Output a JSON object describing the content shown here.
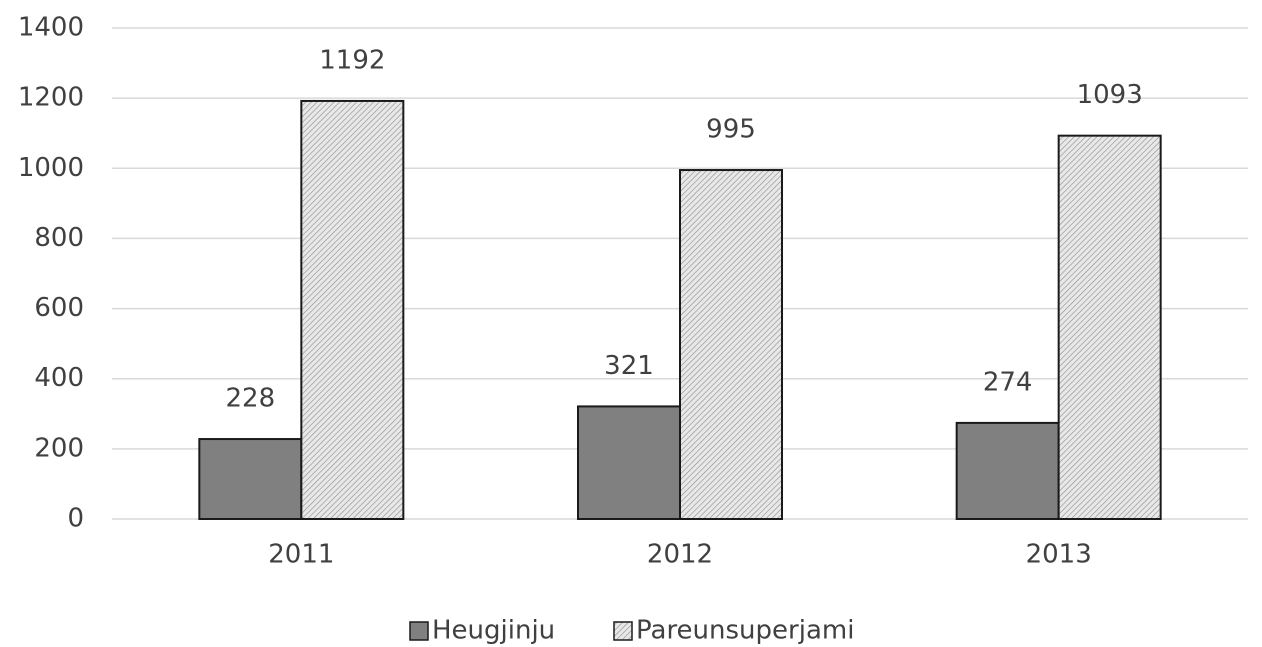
{
  "chart_data": {
    "type": "bar",
    "categories": [
      "2011",
      "2012",
      "2013"
    ],
    "series": [
      {
        "name": "Heugjinju",
        "color": "#808080",
        "values": [
          228,
          321,
          274
        ]
      },
      {
        "name": "Pareunsuperjami",
        "color": "#e8e8e8",
        "pattern": "hatch",
        "values": [
          1192,
          995,
          1093
        ]
      }
    ],
    "ylim": [
      0,
      1400
    ],
    "yticks": [
      0,
      200,
      400,
      600,
      800,
      1000,
      1200,
      1400
    ],
    "grid": true,
    "legend": "bottom",
    "data_labels": true
  }
}
